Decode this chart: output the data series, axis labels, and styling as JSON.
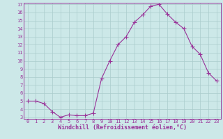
{
  "x": [
    0,
    1,
    2,
    3,
    4,
    5,
    6,
    7,
    8,
    9,
    10,
    11,
    12,
    13,
    14,
    15,
    16,
    17,
    18,
    19,
    20,
    21,
    22,
    23
  ],
  "y": [
    5.0,
    5.0,
    4.7,
    3.7,
    3.0,
    3.3,
    3.2,
    3.2,
    3.5,
    7.8,
    10.0,
    12.0,
    13.0,
    14.8,
    15.7,
    16.8,
    17.0,
    15.8,
    14.8,
    14.0,
    11.8,
    10.8,
    8.5,
    7.5
  ],
  "line_color": "#993399",
  "marker": "+",
  "marker_size": 4,
  "bg_color": "#cce8e8",
  "grid_color": "#aacccc",
  "ylim": [
    3,
    17
  ],
  "xlim": [
    -0.5,
    23.5
  ],
  "yticks": [
    3,
    4,
    5,
    6,
    7,
    8,
    9,
    10,
    11,
    12,
    13,
    14,
    15,
    16,
    17
  ],
  "xticks": [
    0,
    1,
    2,
    3,
    4,
    5,
    6,
    7,
    8,
    9,
    10,
    11,
    12,
    13,
    14,
    15,
    16,
    17,
    18,
    19,
    20,
    21,
    22,
    23
  ],
  "xlabel": "Windchill (Refroidissement éolien,°C)",
  "tick_color": "#993399",
  "tick_fontsize": 5.0,
  "xlabel_fontsize": 6.0,
  "spine_color": "#993399",
  "linewidth": 0.8
}
